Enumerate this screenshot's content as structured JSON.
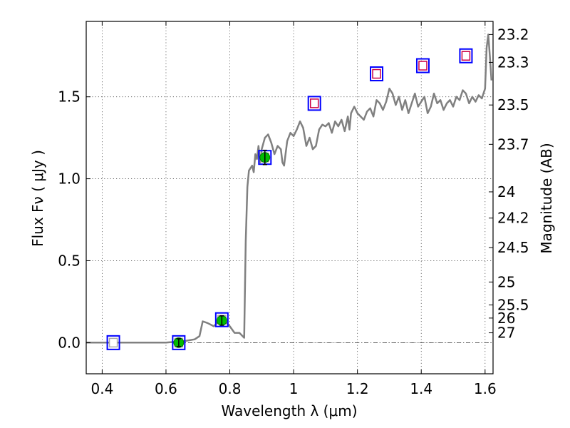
{
  "chart_data": {
    "type": "scatter",
    "xlabel": "Wavelength  λ (μm)",
    "ylabel": "Flux  Fν  ( μJy )",
    "y2label": "Magnitude (AB)",
    "xlim": [
      0.35,
      1.625
    ],
    "ylim": [
      -0.19,
      1.96
    ],
    "grid": true,
    "x_ticks": [
      {
        "value": 0.4,
        "label": "0.4"
      },
      {
        "value": 0.6,
        "label": "0.6"
      },
      {
        "value": 0.8,
        "label": "0.8"
      },
      {
        "value": 1.0,
        "label": "1"
      },
      {
        "value": 1.2,
        "label": "1.2"
      },
      {
        "value": 1.4,
        "label": "1.4"
      },
      {
        "value": 1.6,
        "label": "1.6"
      }
    ],
    "y_ticks": [
      {
        "value": 0.0,
        "label": "0.0"
      },
      {
        "value": 0.5,
        "label": "0.5"
      },
      {
        "value": 1.0,
        "label": "1.0"
      },
      {
        "value": 1.5,
        "label": "1.5"
      }
    ],
    "mag_ticks": [
      {
        "flux": 1.88,
        "label": "23.2"
      },
      {
        "flux": 1.71,
        "label": "23.3"
      },
      {
        "flux": 1.45,
        "label": "23.5"
      },
      {
        "flux": 1.21,
        "label": "23.7"
      },
      {
        "flux": 0.92,
        "label": "24"
      },
      {
        "flux": 0.76,
        "label": "24.2"
      },
      {
        "flux": 0.58,
        "label": "24.5"
      },
      {
        "flux": 0.37,
        "label": "25"
      },
      {
        "flux": 0.23,
        "label": "25.5"
      },
      {
        "flux": 0.15,
        "label": "26"
      },
      {
        "flux": 0.06,
        "label": "27"
      }
    ],
    "model_spectrum": {
      "color": "#808080",
      "x": [
        0.35,
        0.5,
        0.6,
        0.66,
        0.69,
        0.705,
        0.715,
        0.73,
        0.75,
        0.76,
        0.77,
        0.79,
        0.8,
        0.815,
        0.83,
        0.845,
        0.85,
        0.855,
        0.86,
        0.87,
        0.875,
        0.88,
        0.885,
        0.89,
        0.895,
        0.9,
        0.91,
        0.92,
        0.93,
        0.94,
        0.95,
        0.96,
        0.965,
        0.97,
        0.98,
        0.99,
        1.0,
        1.01,
        1.02,
        1.03,
        1.04,
        1.05,
        1.06,
        1.07,
        1.08,
        1.09,
        1.1,
        1.11,
        1.12,
        1.13,
        1.14,
        1.15,
        1.16,
        1.17,
        1.175,
        1.18,
        1.19,
        1.2,
        1.21,
        1.22,
        1.23,
        1.24,
        1.25,
        1.26,
        1.27,
        1.28,
        1.29,
        1.3,
        1.31,
        1.32,
        1.33,
        1.34,
        1.35,
        1.36,
        1.37,
        1.38,
        1.39,
        1.4,
        1.41,
        1.42,
        1.43,
        1.44,
        1.45,
        1.46,
        1.47,
        1.48,
        1.49,
        1.5,
        1.51,
        1.52,
        1.53,
        1.54,
        1.55,
        1.56,
        1.57,
        1.58,
        1.59,
        1.6,
        1.605,
        1.61,
        1.615,
        1.62
      ],
      "y": [
        0.0,
        0.0,
        0.0,
        0.01,
        0.02,
        0.04,
        0.13,
        0.12,
        0.1,
        0.12,
        0.15,
        0.12,
        0.1,
        0.06,
        0.06,
        0.03,
        0.62,
        0.95,
        1.05,
        1.08,
        1.04,
        1.15,
        1.12,
        1.2,
        1.1,
        1.18,
        1.25,
        1.27,
        1.22,
        1.15,
        1.2,
        1.18,
        1.1,
        1.08,
        1.23,
        1.28,
        1.26,
        1.3,
        1.35,
        1.31,
        1.2,
        1.25,
        1.18,
        1.2,
        1.3,
        1.33,
        1.32,
        1.34,
        1.28,
        1.35,
        1.32,
        1.36,
        1.29,
        1.38,
        1.3,
        1.4,
        1.44,
        1.4,
        1.38,
        1.36,
        1.41,
        1.43,
        1.38,
        1.48,
        1.46,
        1.42,
        1.47,
        1.55,
        1.52,
        1.45,
        1.5,
        1.42,
        1.48,
        1.4,
        1.46,
        1.52,
        1.44,
        1.47,
        1.5,
        1.4,
        1.44,
        1.52,
        1.46,
        1.48,
        1.42,
        1.46,
        1.48,
        1.44,
        1.5,
        1.48,
        1.54,
        1.52,
        1.46,
        1.5,
        1.47,
        1.51,
        1.49,
        1.55,
        1.8,
        1.88,
        1.75,
        1.6
      ]
    },
    "bands": [
      {
        "x": 0.435,
        "model": 0.0
      },
      {
        "x": 0.64,
        "model": 0.0
      },
      {
        "x": 0.775,
        "model": 0.14
      },
      {
        "x": 0.91,
        "model": 1.13
      },
      {
        "x": 1.065,
        "model": 1.46
      },
      {
        "x": 1.26,
        "model": 1.64
      },
      {
        "x": 1.405,
        "model": 1.69
      },
      {
        "x": 1.54,
        "model": 1.75
      }
    ],
    "detections": [
      {
        "x": 0.64,
        "y": 0.0,
        "err": 0.015
      },
      {
        "x": 0.775,
        "y": 0.135,
        "err": 0.02
      },
      {
        "x": 0.91,
        "y": 1.13,
        "err": 0.035
      }
    ],
    "red_boxes_from_index": 4,
    "colors": {
      "box_blue": "#0000ff",
      "box_red": "#cc0044",
      "box_gray": "#aaaaaa",
      "detection": "#00bb00",
      "zero_line": "#333333",
      "spectrum": "#808080"
    }
  }
}
